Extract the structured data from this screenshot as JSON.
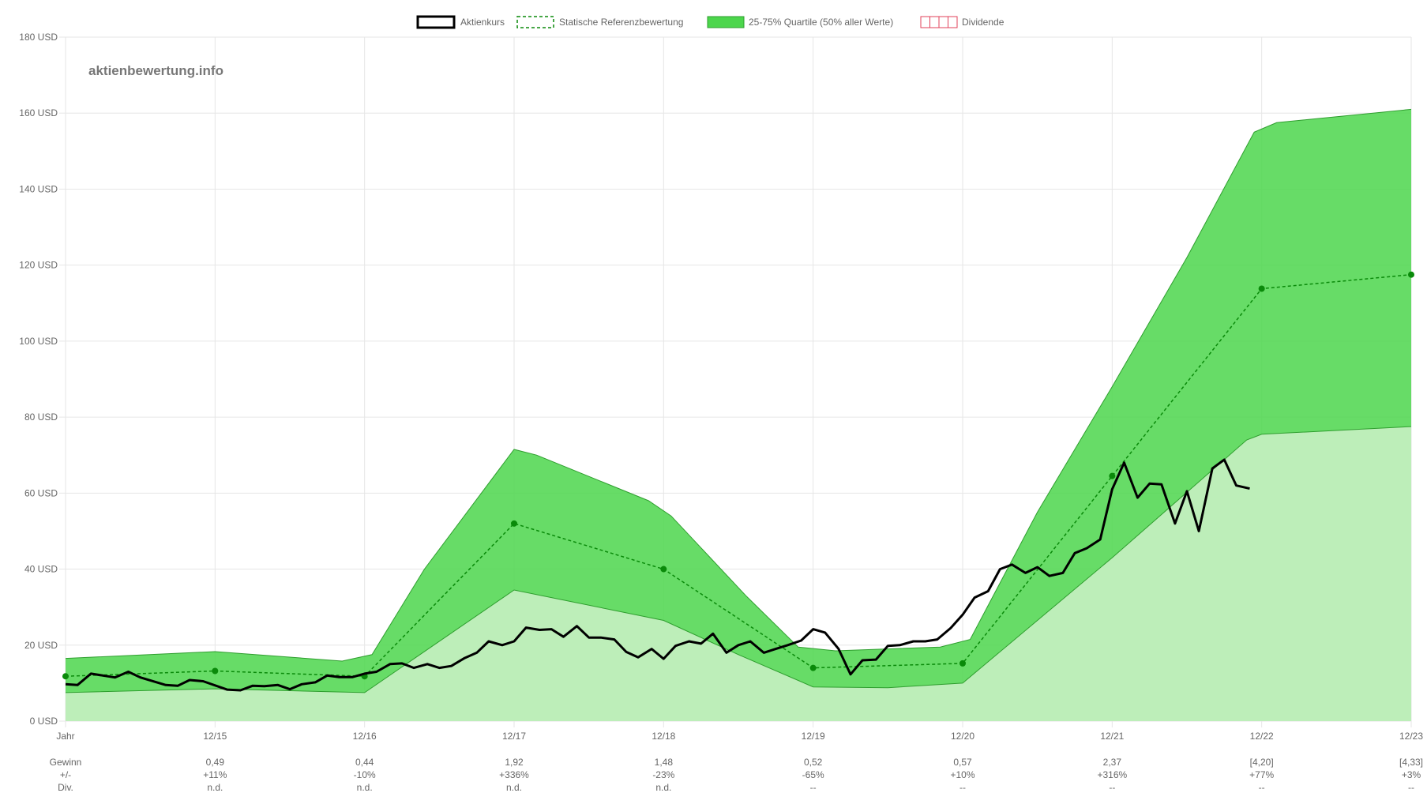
{
  "watermark": "aktienbewertung.info",
  "legend": [
    {
      "label": "Aktienkurs",
      "style": "solid-black"
    },
    {
      "label": "Statische Referenzbewertung",
      "style": "dashed-green"
    },
    {
      "label": "25-75% Quartile (50% aller Werte)",
      "style": "green-fill"
    },
    {
      "label": "Dividende",
      "style": "red-grid"
    }
  ],
  "colors": {
    "band": "#4cd64c",
    "bandStroke": "#2e9e2e",
    "lowerFill": "#bdeeb9",
    "reference": "#0a8a0a",
    "price": "#000000",
    "dividend": "#e0405a",
    "grid": "#e6e6e6",
    "text": "#666666"
  },
  "chart_data": {
    "type": "line",
    "ylim": [
      0,
      180
    ],
    "yticks": [
      "0 USD",
      "20 USD",
      "40 USD",
      "60 USD",
      "80 USD",
      "100 USD",
      "120 USD",
      "140 USD",
      "160 USD",
      "180 USD"
    ],
    "ytickValues": [
      0,
      20,
      40,
      60,
      80,
      100,
      120,
      140,
      160,
      180
    ],
    "xlim": [
      0,
      9
    ],
    "xticks": [
      "Jahr",
      "12/15",
      "12/16",
      "12/17",
      "12/18",
      "12/19",
      "12/20",
      "12/21",
      "12/22",
      "12/23"
    ],
    "reference": {
      "name": "Statische Referenzbewertung",
      "x": [
        0,
        1,
        2,
        3,
        4,
        5,
        6,
        7,
        8,
        9
      ],
      "y": [
        11.8,
        13.2,
        11.8,
        52,
        40,
        14,
        15.2,
        64.5,
        113.8,
        117.5
      ]
    },
    "quartile_upper": {
      "x": [
        0,
        1,
        1.85,
        2.05,
        2.4,
        3,
        3.15,
        3.9,
        4.05,
        4.55,
        4.9,
        5.15,
        5.85,
        6.05,
        6.5,
        7,
        7.5,
        7.95,
        8.1,
        9
      ],
      "y": [
        16.5,
        18.3,
        15.8,
        17.5,
        40,
        71.5,
        70,
        58,
        54,
        33,
        19.5,
        18.5,
        19.5,
        21.5,
        55,
        88,
        122,
        155,
        157.5,
        161
      ]
    },
    "quartile_lower": {
      "x": [
        0,
        1,
        2,
        3,
        4,
        4.5,
        5,
        5.5,
        6,
        7,
        7.9,
        8,
        9
      ],
      "y": [
        7.5,
        8.5,
        7.5,
        34.5,
        26.5,
        17.5,
        9,
        8.8,
        10,
        43,
        74,
        75.5,
        77.5
      ]
    },
    "price": {
      "name": "Aktienkurs",
      "x": [
        0,
        0.08,
        0.17,
        0.33,
        0.42,
        0.5,
        0.67,
        0.75,
        0.83,
        0.92,
        1.08,
        1.17,
        1.25,
        1.33,
        1.42,
        1.5,
        1.58,
        1.67,
        1.75,
        1.83,
        1.92,
        2,
        2.08,
        2.17,
        2.25,
        2.33,
        2.42,
        2.5,
        2.58,
        2.67,
        2.75,
        2.83,
        2.92,
        3,
        3.08,
        3.17,
        3.25,
        3.33,
        3.42,
        3.5,
        3.58,
        3.67,
        3.75,
        3.83,
        3.92,
        4,
        4.08,
        4.17,
        4.25,
        4.33,
        4.42,
        4.5,
        4.58,
        4.67,
        4.75,
        4.83,
        4.92,
        5,
        5.08,
        5.17,
        5.25,
        5.33,
        5.42,
        5.5,
        5.58,
        5.67,
        5.75,
        5.83,
        5.92,
        6,
        6.08,
        6.17,
        6.25,
        6.33,
        6.42,
        6.5,
        6.58,
        6.67,
        6.75,
        6.83,
        6.92,
        7,
        7.08,
        7.17,
        7.25,
        7.33,
        7.42,
        7.5,
        7.58,
        7.67,
        7.75,
        7.83,
        7.92
      ],
      "y": [
        9.7,
        9.5,
        12.5,
        11.5,
        13,
        11.5,
        9.5,
        9.3,
        10.8,
        10.5,
        8.3,
        8.1,
        9.3,
        9.2,
        9.5,
        8.4,
        9.7,
        10.2,
        12,
        11.6,
        11.6,
        12.5,
        13,
        15,
        15.2,
        14,
        15,
        14,
        14.5,
        16.6,
        18,
        21,
        20,
        21,
        24.6,
        24,
        24.2,
        22.2,
        25,
        22,
        22,
        21.5,
        18.2,
        16.8,
        19,
        16.4,
        19.8,
        21,
        20.4,
        23,
        18,
        20,
        21,
        18,
        19,
        20,
        21.2,
        24.2,
        23.3,
        19,
        12.3,
        16,
        16.2,
        19.8,
        20,
        21,
        21,
        21.5,
        24.5,
        28,
        32.5,
        34.2,
        40,
        41.2,
        39,
        40.5,
        38.2,
        39,
        44.2,
        45.5,
        47.8,
        61,
        68,
        58.8,
        62.5,
        62.3,
        52,
        60.5,
        50,
        66.5,
        68.8,
        62,
        61.2
      ]
    }
  },
  "bottom_rows": {
    "labels": [
      "Gewinn",
      "+/-",
      "Div."
    ],
    "columns": [
      {
        "gewinn": "0,49",
        "change": "+11%",
        "div": "n.d."
      },
      {
        "gewinn": "0,44",
        "change": "-10%",
        "div": "n.d."
      },
      {
        "gewinn": "1,92",
        "change": "+336%",
        "div": "n.d."
      },
      {
        "gewinn": "1,48",
        "change": "-23%",
        "div": "n.d."
      },
      {
        "gewinn": "0,52",
        "change": "-65%",
        "div": "--"
      },
      {
        "gewinn": "0,57",
        "change": "+10%",
        "div": "--"
      },
      {
        "gewinn": "2,37",
        "change": "+316%",
        "div": "--"
      },
      {
        "gewinn": "[4,20]",
        "change": "+77%",
        "div": "--"
      },
      {
        "gewinn": "[4,33]",
        "change": "+3%",
        "div": "--"
      }
    ]
  }
}
